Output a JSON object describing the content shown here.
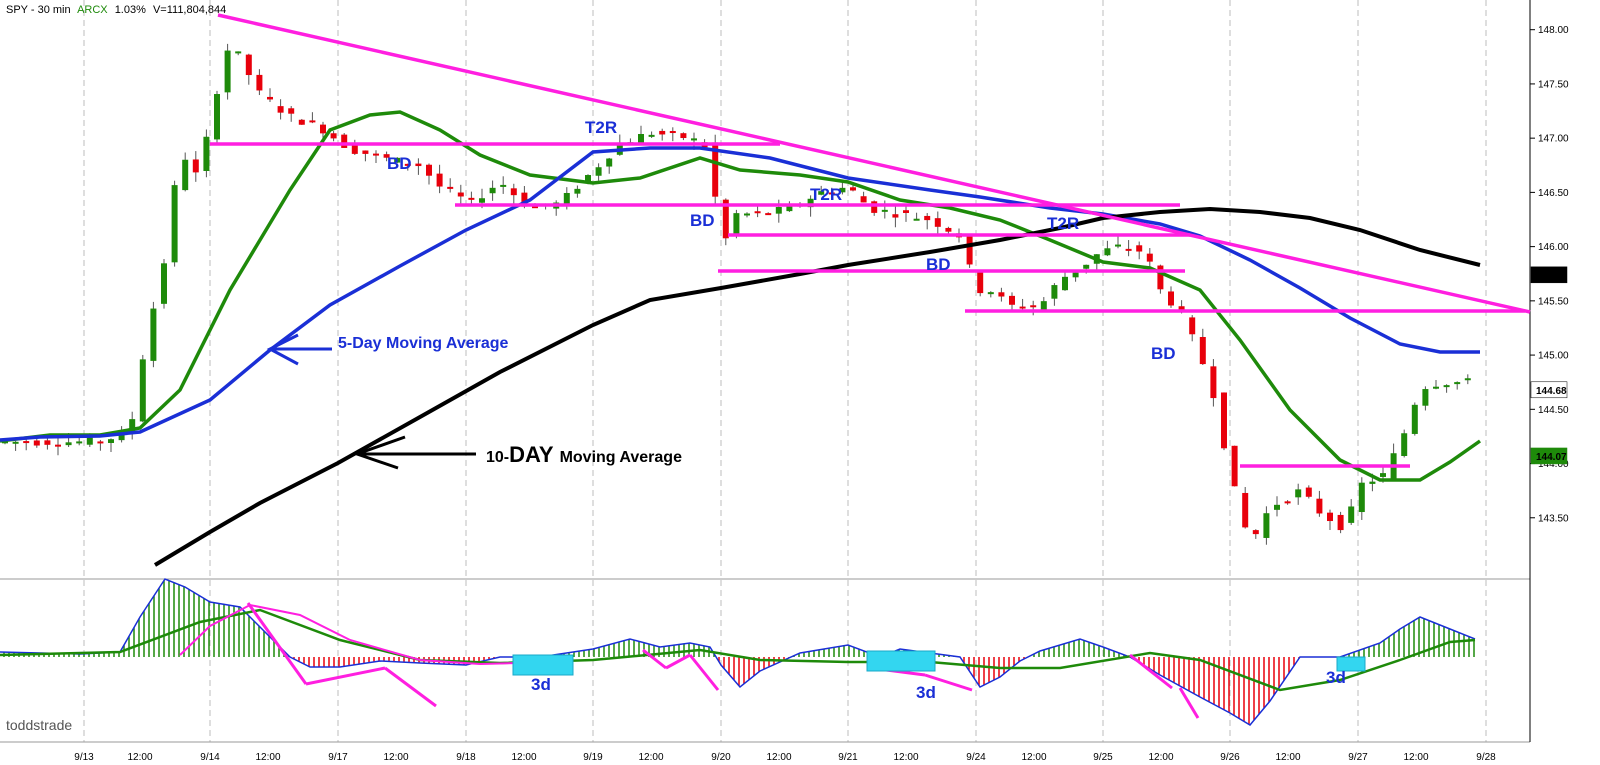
{
  "header": {
    "symbol": "SPY - 30 min",
    "exchange": "ARCX",
    "change": "1.03%",
    "volume": "V=111,804,844"
  },
  "watermark": "toddstrade",
  "chart_data": {
    "type": "candlestick",
    "ylim": [
      143.0,
      148.2
    ],
    "y_ticks": [
      "148.00",
      "147.50",
      "147.00",
      "146.50",
      "146.00",
      "145.50",
      "145.00",
      "144.50",
      "144.00",
      "143.50"
    ],
    "x_tick_labels": [
      "9/13",
      "12:00",
      "9/14",
      "12:00",
      "9/17",
      "12:00",
      "9/18",
      "12:00",
      "9/19",
      "12:00",
      "9/20",
      "12:00",
      "9/21",
      "12:00",
      "9/24",
      "12:00",
      "9/25",
      "12:00",
      "9/26",
      "12:00",
      "9/27",
      "12:00",
      "9/28"
    ],
    "price_labels": [
      {
        "text": "145.74",
        "value": 145.74,
        "bg": "#000000",
        "fg": "#ffffff"
      },
      {
        "text": "144.68",
        "value": 144.68,
        "bg": "#ffffff",
        "fg": "#e8000b"
      },
      {
        "text": "144.07",
        "value": 144.07,
        "bg": "#1e8a0a",
        "fg": "#ffffff"
      }
    ],
    "annotations": {
      "bd": "BD",
      "t2r": "T2R",
      "five_day": "5-Day Moving Average",
      "ten_day_num": "10-",
      "ten_day_big": "DAY",
      "ten_day_rest": "Moving Average",
      "three_d": "3d"
    },
    "colors": {
      "up": "#1e8a0a",
      "down": "#e8000b",
      "ma_short": "#1e8a0a",
      "ma_5day": "#1a2fd6",
      "ma_10day": "#000000",
      "trend": "#ff1fe0",
      "box": "#33d6f0"
    }
  }
}
